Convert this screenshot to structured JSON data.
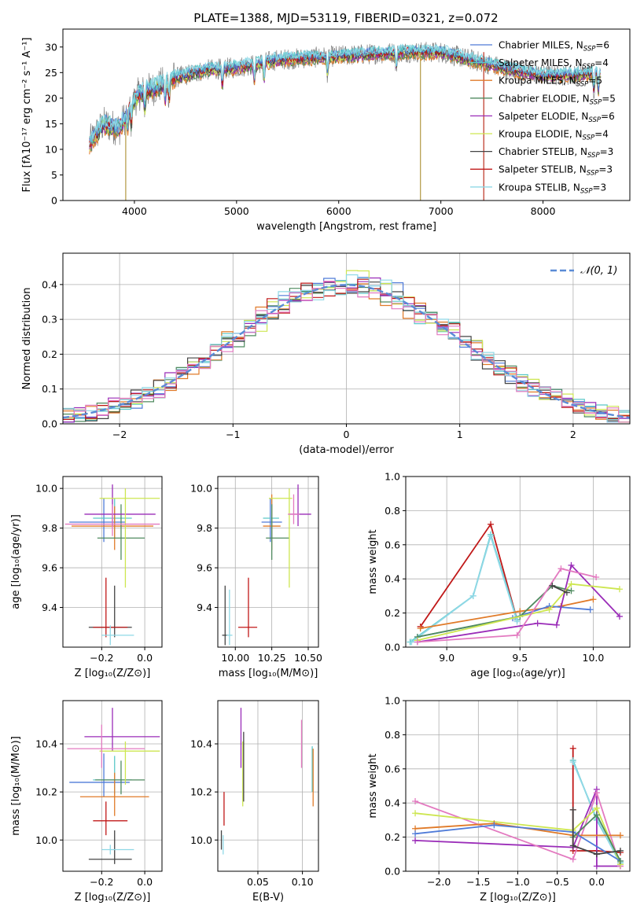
{
  "figure": {
    "title": "PLATE=1388, MJD=53119, FIBERID=0321, z=0.072"
  },
  "colors": {
    "Chabrier MILES": "#4f7bd8",
    "Salpeter MILES": "#5bc8c8",
    "Kroupa MILES": "#e07a28",
    "Chabrier ELODIE": "#4f8a5f",
    "Salpeter ELODIE": "#9a2cb8",
    "Kroupa ELODIE": "#cde650",
    "Chabrier STELIB": "#444444",
    "Salpeter STELIB": "#c01818",
    "Kroupa STELIB": "#8fd8e6",
    "pink": "#e37ac0",
    "data": "#808080",
    "normal": "#5a8bd6"
  },
  "chart_data": [
    {
      "id": "spectrum",
      "type": "line",
      "xlabel": "wavelength [Angstrom, rest frame]",
      "ylabel": "Flux [fλ10⁻¹⁷ erg cm⁻² s⁻¹ A⁻¹]",
      "xlim": [
        3300,
        8850
      ],
      "ylim": [
        0,
        33.5
      ],
      "xticks": [
        4000,
        5000,
        6000,
        7000,
        8000
      ],
      "yticks": [
        0,
        5,
        10,
        15,
        20,
        25,
        30
      ],
      "legend_position": "top-right",
      "series": [
        {
          "name": "Chabrier MILES",
          "nssp": "6"
        },
        {
          "name": "Salpeter MILES",
          "nssp": "4"
        },
        {
          "name": "Kroupa MILES",
          "nssp": "5"
        },
        {
          "name": "Chabrier ELODIE",
          "nssp": "5"
        },
        {
          "name": "Salpeter ELODIE",
          "nssp": "6"
        },
        {
          "name": "Kroupa ELODIE",
          "nssp": "4"
        },
        {
          "name": "Chabrier STELIB",
          "nssp": "3"
        },
        {
          "name": "Salpeter STELIB",
          "nssp": "3"
        },
        {
          "name": "Kroupa STELIB",
          "nssp": "3"
        }
      ],
      "continuum_knots": [
        [
          3550,
          11
        ],
        [
          3700,
          15
        ],
        [
          3850,
          14
        ],
        [
          3950,
          18
        ],
        [
          4050,
          21
        ],
        [
          4200,
          22
        ],
        [
          4400,
          24
        ],
        [
          4700,
          25.5
        ],
        [
          5000,
          26
        ],
        [
          5400,
          27.5
        ],
        [
          5800,
          28
        ],
        [
          6200,
          28.5
        ],
        [
          6600,
          29
        ],
        [
          7000,
          29
        ],
        [
          7300,
          27.5
        ],
        [
          7700,
          25.5
        ],
        [
          8000,
          24.5
        ],
        [
          8300,
          24.5
        ],
        [
          8550,
          25
        ]
      ]
    },
    {
      "id": "residuals",
      "type": "histogram",
      "xlabel": "(data-model)/error",
      "ylabel": "Normed distribution",
      "xlim": [
        -2.5,
        2.5
      ],
      "ylim": [
        0,
        0.49
      ],
      "xticks": [
        -2,
        -1,
        0,
        1,
        2
      ],
      "xticklabels": [
        "−2",
        "−1",
        "0",
        "1",
        "2"
      ],
      "yticks": [
        0.0,
        0.1,
        0.2,
        0.3,
        0.4
      ],
      "grid": true,
      "legend_position": "top-right",
      "legend_label": "𝒩(0, 1)",
      "bin_width": 0.1
    },
    {
      "id": "age_vs_Z",
      "type": "errorbar",
      "xlabel": "Z [log₁₀(Z/Z⊙)]",
      "ylabel": "age  [log₁₀(age/yr)]",
      "xlim": [
        -0.38,
        0.08
      ],
      "ylim": [
        9.2,
        10.06
      ],
      "xticks": [
        -0.2,
        0.0
      ],
      "xticklabels": [
        "−0.2",
        "0.0"
      ],
      "yticks": [
        9.4,
        9.6,
        9.8,
        10.0
      ],
      "grid": true,
      "points": [
        {
          "c": "Chabrier MILES",
          "x": -0.19,
          "xl": 0.16,
          "xh": 0.1,
          "y": 9.83,
          "yl": 0.1,
          "yh": 0.12
        },
        {
          "c": "Salpeter MILES",
          "x": -0.14,
          "xl": 0.1,
          "xh": 0.08,
          "y": 9.85,
          "yl": 0.1,
          "yh": 0.1
        },
        {
          "c": "Kroupa MILES",
          "x": -0.14,
          "xl": 0.2,
          "xh": 0.18,
          "y": 9.81,
          "yl": 0.12,
          "yh": 0.1
        },
        {
          "c": "Chabrier ELODIE",
          "x": -0.11,
          "xl": 0.11,
          "xh": 0.11,
          "y": 9.75,
          "yl": 0.11,
          "yh": 0.17
        },
        {
          "c": "Salpeter ELODIE",
          "x": -0.15,
          "xl": 0.13,
          "xh": 0.2,
          "y": 9.87,
          "yl": 0.06,
          "yh": 0.15
        },
        {
          "c": "Kroupa ELODIE",
          "x": -0.09,
          "xl": 0.12,
          "xh": 0.16,
          "y": 9.95,
          "yl": 0.45,
          "yh": 0.05
        },
        {
          "c": "Chabrier STELIB",
          "x": -0.14,
          "xl": 0.12,
          "xh": 0.08,
          "y": 9.3,
          "yl": 0.05,
          "yh": 0.21
        },
        {
          "c": "Salpeter STELIB",
          "x": -0.18,
          "xl": 0.06,
          "xh": 0.1,
          "y": 9.3,
          "yl": 0.05,
          "yh": 0.25
        },
        {
          "c": "Kroupa STELIB",
          "x": -0.16,
          "xl": 0.04,
          "xh": 0.11,
          "y": 9.26,
          "yl": 0.05,
          "yh": 0.05
        },
        {
          "c": "pink",
          "x": -0.15,
          "xl": 0.22,
          "xh": 0.22,
          "y": 9.82,
          "yl": 0.06,
          "yh": 0.1
        }
      ]
    },
    {
      "id": "age_vs_mass",
      "type": "errorbar",
      "xlabel": "mass [log₁₀(M/M⊙)]",
      "ylabel": "",
      "xlim": [
        9.88,
        10.57
      ],
      "ylim": [
        9.2,
        10.06
      ],
      "xticks": [
        10.0,
        10.25,
        10.5
      ],
      "xticklabels": [
        "10.00",
        "10.25",
        "10.50"
      ],
      "yticks": [
        9.4,
        9.6,
        9.8,
        10.0
      ],
      "grid": true,
      "points": [
        {
          "c": "Chabrier MILES",
          "x": 10.24,
          "xl": 0.06,
          "xh": 0.08,
          "y": 9.83,
          "yl": 0.1,
          "yh": 0.12
        },
        {
          "c": "Salpeter MILES",
          "x": 10.25,
          "xl": 0.06,
          "xh": 0.05,
          "y": 9.85,
          "yl": 0.1,
          "yh": 0.1
        },
        {
          "c": "Kroupa MILES",
          "x": 10.25,
          "xl": 0.06,
          "xh": 0.06,
          "y": 9.81,
          "yl": 0.12,
          "yh": 0.16
        },
        {
          "c": "Chabrier ELODIE",
          "x": 10.25,
          "xl": 0.04,
          "xh": 0.12,
          "y": 9.75,
          "yl": 0.11,
          "yh": 0.17
        },
        {
          "c": "Salpeter ELODIE",
          "x": 10.43,
          "xl": 0.06,
          "xh": 0.09,
          "y": 9.87,
          "yl": 0.06,
          "yh": 0.15
        },
        {
          "c": "Kroupa ELODIE",
          "x": 10.37,
          "xl": 0.14,
          "xh": 0.02,
          "y": 9.95,
          "yl": 0.45,
          "yh": 0.05
        },
        {
          "c": "Chabrier STELIB",
          "x": 9.93,
          "xl": 0.02,
          "xh": 0.02,
          "y": 9.26,
          "yl": 0.05,
          "yh": 0.25
        },
        {
          "c": "Salpeter STELIB",
          "x": 10.09,
          "xl": 0.07,
          "xh": 0.06,
          "y": 9.3,
          "yl": 0.05,
          "yh": 0.25
        },
        {
          "c": "Kroupa STELIB",
          "x": 9.96,
          "xl": 0.02,
          "xh": 0.02,
          "y": 9.26,
          "yl": 0.05,
          "yh": 0.23
        },
        {
          "c": "pink",
          "x": 10.4,
          "xl": 0.04,
          "xh": 0.04,
          "y": 9.87,
          "yl": 0.05,
          "yh": 0.1
        }
      ]
    },
    {
      "id": "weight_vs_age",
      "type": "line",
      "xlabel": "age  [log₁₀(age/yr)]",
      "ylabel": "mass weight",
      "xlim": [
        8.72,
        10.25
      ],
      "ylim": [
        0,
        1.0
      ],
      "xticks": [
        9.0,
        9.5,
        10.0
      ],
      "xticklabels": [
        "9.0",
        "9.5",
        "10.0"
      ],
      "yticks": [
        0.0,
        0.2,
        0.4,
        0.6,
        0.8,
        1.0
      ],
      "grid": true,
      "series": [
        {
          "c": "Salpeter STELIB",
          "x": [
            8.82,
            9.3,
            9.48
          ],
          "y": [
            0.12,
            0.72,
            0.16
          ]
        },
        {
          "c": "Salpeter MILES",
          "x": [
            8.75,
            9.18,
            9.3,
            9.48
          ],
          "y": [
            0.03,
            0.3,
            0.66,
            0.16
          ]
        },
        {
          "c": "Kroupa STELIB",
          "x": [
            8.76,
            9.18,
            9.3,
            9.48
          ],
          "y": [
            0.03,
            0.3,
            0.65,
            0.15
          ]
        },
        {
          "c": "Kroupa MILES",
          "x": [
            8.82,
            9.5,
            9.78,
            10.0
          ],
          "y": [
            0.11,
            0.21,
            0.24,
            0.28
          ]
        },
        {
          "c": "Chabrier MILES",
          "x": [
            8.8,
            9.45,
            9.7,
            9.98
          ],
          "y": [
            0.06,
            0.17,
            0.24,
            0.22
          ]
        },
        {
          "c": "Chabrier ELODIE",
          "x": [
            8.8,
            9.5,
            9.72,
            9.85
          ],
          "y": [
            0.06,
            0.18,
            0.36,
            0.33
          ]
        },
        {
          "c": "Salpeter ELODIE",
          "x": [
            8.8,
            9.62,
            9.75,
            9.85,
            10.18
          ],
          "y": [
            0.03,
            0.14,
            0.13,
            0.48,
            0.18
          ]
        },
        {
          "c": "Kroupa ELODIE",
          "x": [
            8.8,
            9.7,
            9.85,
            10.18
          ],
          "y": [
            0.04,
            0.22,
            0.37,
            0.34
          ]
        },
        {
          "c": "pink",
          "x": [
            8.8,
            9.48,
            9.78,
            10.02
          ],
          "y": [
            0.03,
            0.07,
            0.46,
            0.41
          ]
        },
        {
          "c": "Chabrier STELIB",
          "x": [
            9.72,
            9.82
          ],
          "y": [
            0.36,
            0.32
          ]
        }
      ]
    },
    {
      "id": "mass_vs_Z",
      "type": "errorbar",
      "xlabel": "Z [log₁₀(Z/Z⊙)]",
      "ylabel": "mass [log₁₀(M/M⊙)]",
      "xlim": [
        -0.38,
        0.08
      ],
      "ylim": [
        9.87,
        10.58
      ],
      "xticks": [
        -0.2,
        0.0
      ],
      "xticklabels": [
        "−0.2",
        "0.0"
      ],
      "yticks": [
        10.0,
        10.2,
        10.4
      ],
      "grid": true,
      "points": [
        {
          "c": "Chabrier MILES",
          "x": -0.19,
          "xl": 0.16,
          "xh": 0.12,
          "y": 10.24,
          "yl": 0.06,
          "yh": 0.12
        },
        {
          "c": "Salpeter MILES",
          "x": -0.14,
          "xl": 0.1,
          "xh": 0.08,
          "y": 10.25,
          "yl": 0.06,
          "yh": 0.1
        },
        {
          "c": "Kroupa MILES",
          "x": -0.14,
          "xl": 0.16,
          "xh": 0.16,
          "y": 10.18,
          "yl": 0.08,
          "yh": 0.1
        },
        {
          "c": "Chabrier ELODIE",
          "x": -0.11,
          "xl": 0.12,
          "xh": 0.11,
          "y": 10.25,
          "yl": 0.06,
          "yh": 0.08
        },
        {
          "c": "Salpeter ELODIE",
          "x": -0.15,
          "xl": 0.13,
          "xh": 0.22,
          "y": 10.43,
          "yl": 0.06,
          "yh": 0.12
        },
        {
          "c": "Kroupa ELODIE",
          "x": -0.09,
          "xl": 0.12,
          "xh": 0.16,
          "y": 10.37,
          "yl": 0.14,
          "yh": 0.04
        },
        {
          "c": "Chabrier STELIB",
          "x": -0.14,
          "xl": 0.12,
          "xh": 0.08,
          "y": 9.92,
          "yl": 0.02,
          "yh": 0.12
        },
        {
          "c": "Salpeter STELIB",
          "x": -0.18,
          "xl": 0.06,
          "xh": 0.1,
          "y": 10.08,
          "yl": 0.06,
          "yh": 0.08
        },
        {
          "c": "Kroupa STELIB",
          "x": -0.16,
          "xl": 0.04,
          "xh": 0.11,
          "y": 9.96,
          "yl": 0.02,
          "yh": 0.02
        },
        {
          "c": "pink",
          "x": -0.2,
          "xl": 0.16,
          "xh": 0.2,
          "y": 10.38,
          "yl": 0.08,
          "yh": 0.1
        }
      ]
    },
    {
      "id": "mass_vs_ebv",
      "type": "errorbar",
      "xlabel": "E(B-V)",
      "ylabel": "",
      "xlim": [
        0.005,
        0.118
      ],
      "ylim": [
        9.87,
        10.58
      ],
      "xticks": [
        0.05,
        0.1
      ],
      "xticklabels": [
        "0.05",
        "0.10"
      ],
      "yticks": [
        10.0,
        10.2,
        10.4
      ],
      "grid": true,
      "points": [
        {
          "c": "Chabrier STELIB",
          "x": 0.009,
          "xl": 0,
          "xh": 0,
          "y": 10.0,
          "yl": 0.04,
          "yh": 0.04
        },
        {
          "c": "Kroupa STELIB",
          "x": 0.011,
          "xl": 0,
          "xh": 0,
          "y": 9.98,
          "yl": 0.04,
          "yh": 0.04
        },
        {
          "c": "Salpeter STELIB",
          "x": 0.012,
          "xl": 0,
          "xh": 0,
          "y": 10.15,
          "yl": 0.09,
          "yh": 0.05
        },
        {
          "c": "Salpeter ELODIE",
          "x": 0.031,
          "xl": 0,
          "xh": 0,
          "y": 10.43,
          "yl": 0.13,
          "yh": 0.12
        },
        {
          "c": "Kroupa ELODIE",
          "x": 0.033,
          "xl": 0,
          "xh": 0,
          "y": 10.33,
          "yl": 0.19,
          "yh": 0.08
        },
        {
          "c": "Chabrier STELIB",
          "x": 0.034,
          "xl": 0,
          "xh": 0,
          "y": 10.33,
          "yl": 0.17,
          "yh": 0.12
        },
        {
          "c": "pink",
          "x": 0.099,
          "xl": 0,
          "xh": 0,
          "y": 10.38,
          "yl": 0.08,
          "yh": 0.12
        },
        {
          "c": "Salpeter MILES",
          "x": 0.111,
          "xl": 0,
          "xh": 0,
          "y": 10.3,
          "yl": 0.1,
          "yh": 0.09
        },
        {
          "c": "Kroupa MILES",
          "x": 0.112,
          "xl": 0,
          "xh": 0,
          "y": 10.26,
          "yl": 0.12,
          "yh": 0.12
        }
      ]
    },
    {
      "id": "weight_vs_Z",
      "type": "line",
      "xlabel": "Z [log₁₀(Z/Z⊙)]",
      "ylabel": "mass weight",
      "xlim": [
        -2.42,
        0.42
      ],
      "ylim": [
        0,
        1.0
      ],
      "xticks": [
        -2.0,
        -1.5,
        -1.0,
        -0.5,
        0.0
      ],
      "xticklabels": [
        "−2.0",
        "−1.5",
        "−1.0",
        "−0.5",
        "0.0"
      ],
      "yticks": [
        0.0,
        0.2,
        0.4,
        0.6,
        0.8,
        1.0
      ],
      "grid": true,
      "series": [
        {
          "c": "Salpeter STELIB",
          "x": [
            -0.3,
            -0.3,
            -0.3,
            0.0,
            0.3
          ],
          "y": [
            0.72,
            0.36,
            0.12,
            0.12,
            0.11
          ]
        },
        {
          "c": "Salpeter MILES",
          "x": [
            -0.3,
            0.0,
            0.3
          ],
          "y": [
            0.65,
            0.3,
            0.05
          ]
        },
        {
          "c": "Kroupa STELIB",
          "x": [
            -0.3,
            0.0,
            0.3
          ],
          "y": [
            0.64,
            0.31,
            0.04
          ]
        },
        {
          "c": "Salpeter ELODIE",
          "x": [
            -2.3,
            -0.3,
            0.0,
            0.0,
            0.3
          ],
          "y": [
            0.18,
            0.14,
            0.48,
            0.03,
            0.03
          ]
        },
        {
          "c": "pink",
          "x": [
            -2.3,
            -0.3,
            0.0,
            0.3
          ],
          "y": [
            0.41,
            0.07,
            0.46,
            0.03
          ]
        },
        {
          "c": "Kroupa ELODIE",
          "x": [
            -2.3,
            -0.3,
            0.0,
            0.3
          ],
          "y": [
            0.34,
            0.24,
            0.37,
            0.04
          ]
        },
        {
          "c": "Kroupa MILES",
          "x": [
            -2.3,
            -1.3,
            -0.3,
            0.3
          ],
          "y": [
            0.25,
            0.28,
            0.21,
            0.21
          ]
        },
        {
          "c": "Chabrier MILES",
          "x": [
            -2.3,
            -1.3,
            -0.3,
            0.3
          ],
          "y": [
            0.22,
            0.27,
            0.23,
            0.06
          ]
        },
        {
          "c": "Chabrier ELODIE",
          "x": [
            -0.3,
            0.0,
            0.3
          ],
          "y": [
            0.2,
            0.33,
            0.06
          ]
        },
        {
          "c": "Chabrier STELIB",
          "x": [
            -0.3,
            -0.3,
            0.0,
            0.3
          ],
          "y": [
            0.36,
            0.15,
            0.1,
            0.12
          ]
        }
      ]
    }
  ]
}
